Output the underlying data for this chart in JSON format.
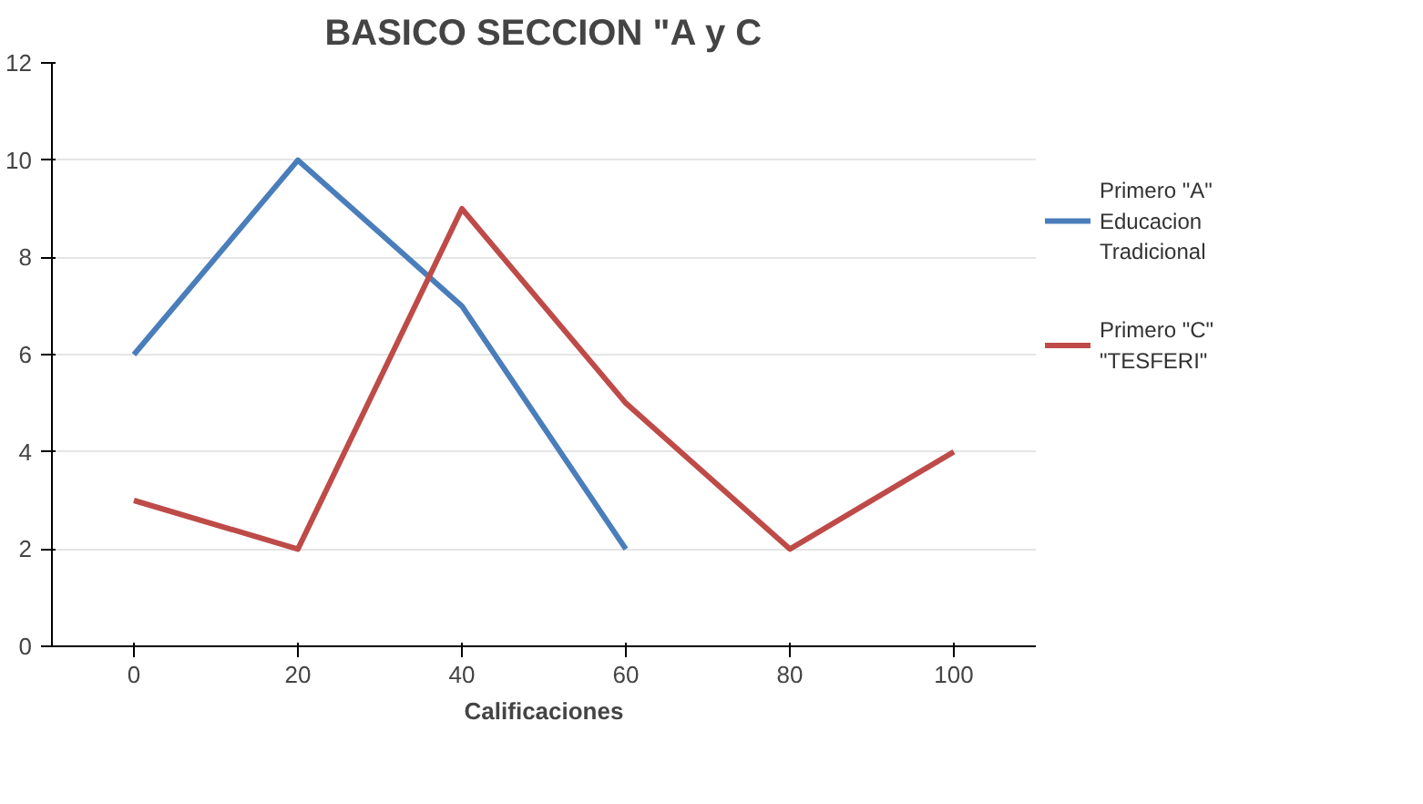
{
  "chart_data": {
    "type": "line",
    "title": "BASICO SECCION \"A y C",
    "xlabel": "Calificaciones",
    "categories": [
      "0",
      "20",
      "40",
      "60",
      "80",
      "100"
    ],
    "series": [
      {
        "name": "Primero \"A\" Educacion Tradicional",
        "color": "#4a7ebb",
        "values": [
          6,
          10,
          7,
          2,
          null,
          null
        ]
      },
      {
        "name": "Primero \"C\" \"TESFERI\"",
        "color": "#be4b48",
        "values": [
          3,
          2,
          9,
          5,
          2,
          4
        ]
      }
    ],
    "ylim": [
      0,
      12
    ],
    "yticks": [
      0,
      2,
      4,
      6,
      8,
      10,
      12
    ],
    "grid": "y",
    "legend": "right",
    "marker": "none",
    "line_style": "solid"
  }
}
